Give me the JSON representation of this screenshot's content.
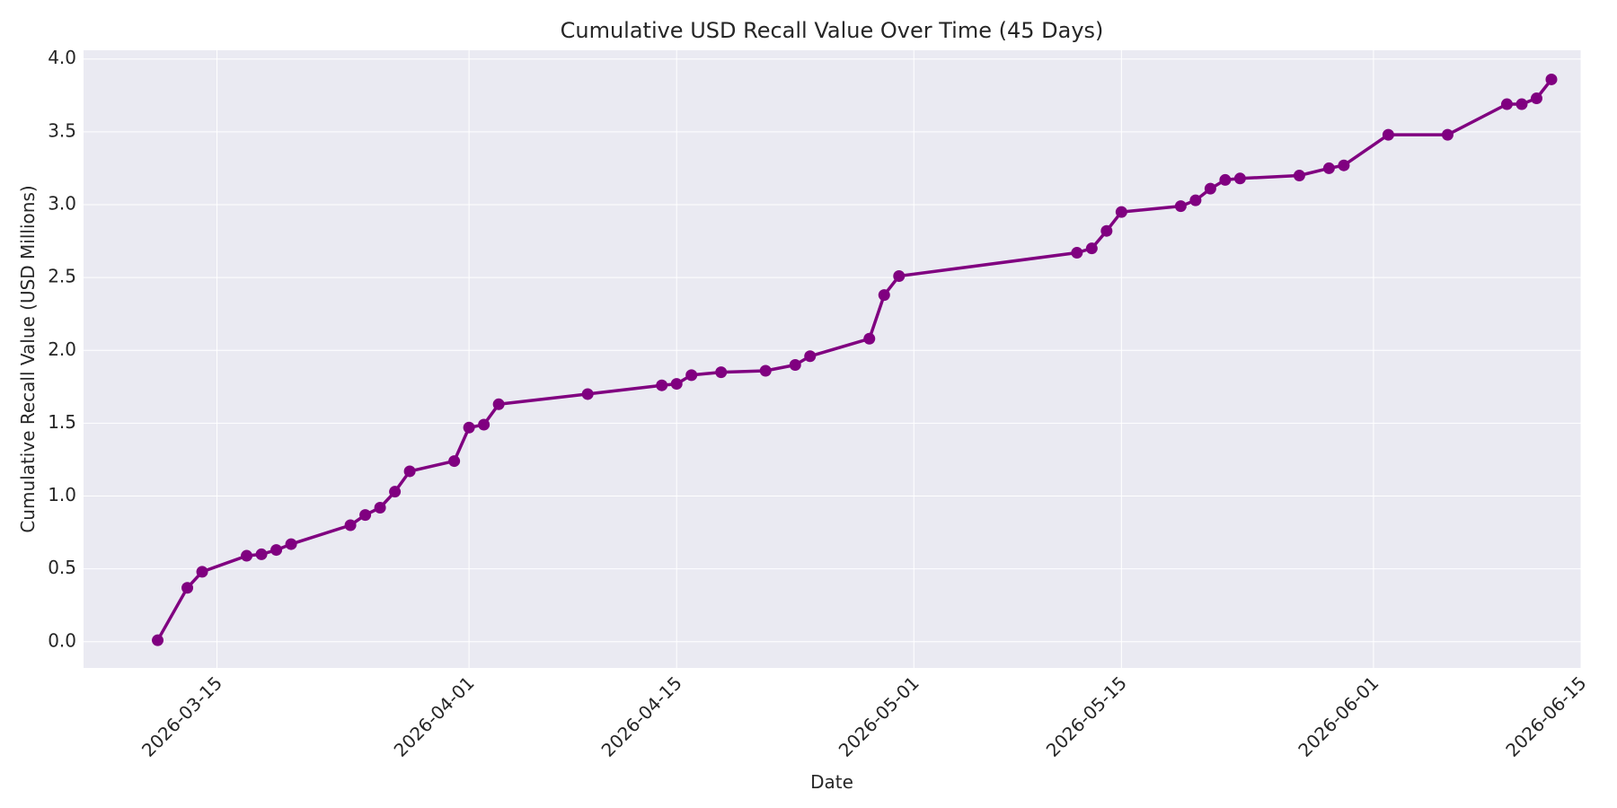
{
  "chart_data": {
    "type": "line",
    "title": "Cumulative USD Recall Value Over Time (45 Days)",
    "xlabel": "Date",
    "ylabel": "Cumulative Recall Value (USD Millions)",
    "x_tick_labels": [
      "2026-03-15",
      "2026-04-01",
      "2026-04-15",
      "2026-05-01",
      "2026-05-15",
      "2026-06-01",
      "2026-06-15"
    ],
    "y_tick_labels": [
      "0.0",
      "0.5",
      "1.0",
      "1.5",
      "2.0",
      "2.5",
      "3.0",
      "3.5",
      "4.0"
    ],
    "xlim": [
      "2026-03-06",
      "2026-06-15"
    ],
    "ylim": [
      -0.18,
      4.06
    ],
    "grid": true,
    "colors": {
      "line": "#800080",
      "plot_background": "#eaeaf2",
      "grid": "#ffffff"
    },
    "series": [
      {
        "x": [
          "2026-03-11",
          "2026-03-13",
          "2026-03-14",
          "2026-03-17",
          "2026-03-18",
          "2026-03-19",
          "2026-03-20",
          "2026-03-24",
          "2026-03-25",
          "2026-03-26",
          "2026-03-27",
          "2026-03-28",
          "2026-03-31",
          "2026-04-01",
          "2026-04-02",
          "2026-04-03",
          "2026-04-09",
          "2026-04-14",
          "2026-04-15",
          "2026-04-16",
          "2026-04-18",
          "2026-04-21",
          "2026-04-23",
          "2026-04-24",
          "2026-04-28",
          "2026-04-29",
          "2026-04-30",
          "2026-05-12",
          "2026-05-13",
          "2026-05-14",
          "2026-05-15",
          "2026-05-19",
          "2026-05-20",
          "2026-05-21",
          "2026-05-22",
          "2026-05-23",
          "2026-05-27",
          "2026-05-29",
          "2026-05-30",
          "2026-06-02",
          "2026-06-06",
          "2026-06-10",
          "2026-06-11",
          "2026-06-12",
          "2026-06-13"
        ],
        "values": [
          0.01,
          0.37,
          0.48,
          0.59,
          0.6,
          0.63,
          0.67,
          0.8,
          0.87,
          0.92,
          1.03,
          1.17,
          1.24,
          1.47,
          1.49,
          1.63,
          1.7,
          1.76,
          1.77,
          1.83,
          1.85,
          1.86,
          1.9,
          1.96,
          2.08,
          2.38,
          2.51,
          2.67,
          2.7,
          2.82,
          2.95,
          2.99,
          3.03,
          3.11,
          3.17,
          3.18,
          3.2,
          3.25,
          3.27,
          3.48,
          3.48,
          3.69,
          3.69,
          3.73,
          3.86
        ]
      }
    ]
  }
}
